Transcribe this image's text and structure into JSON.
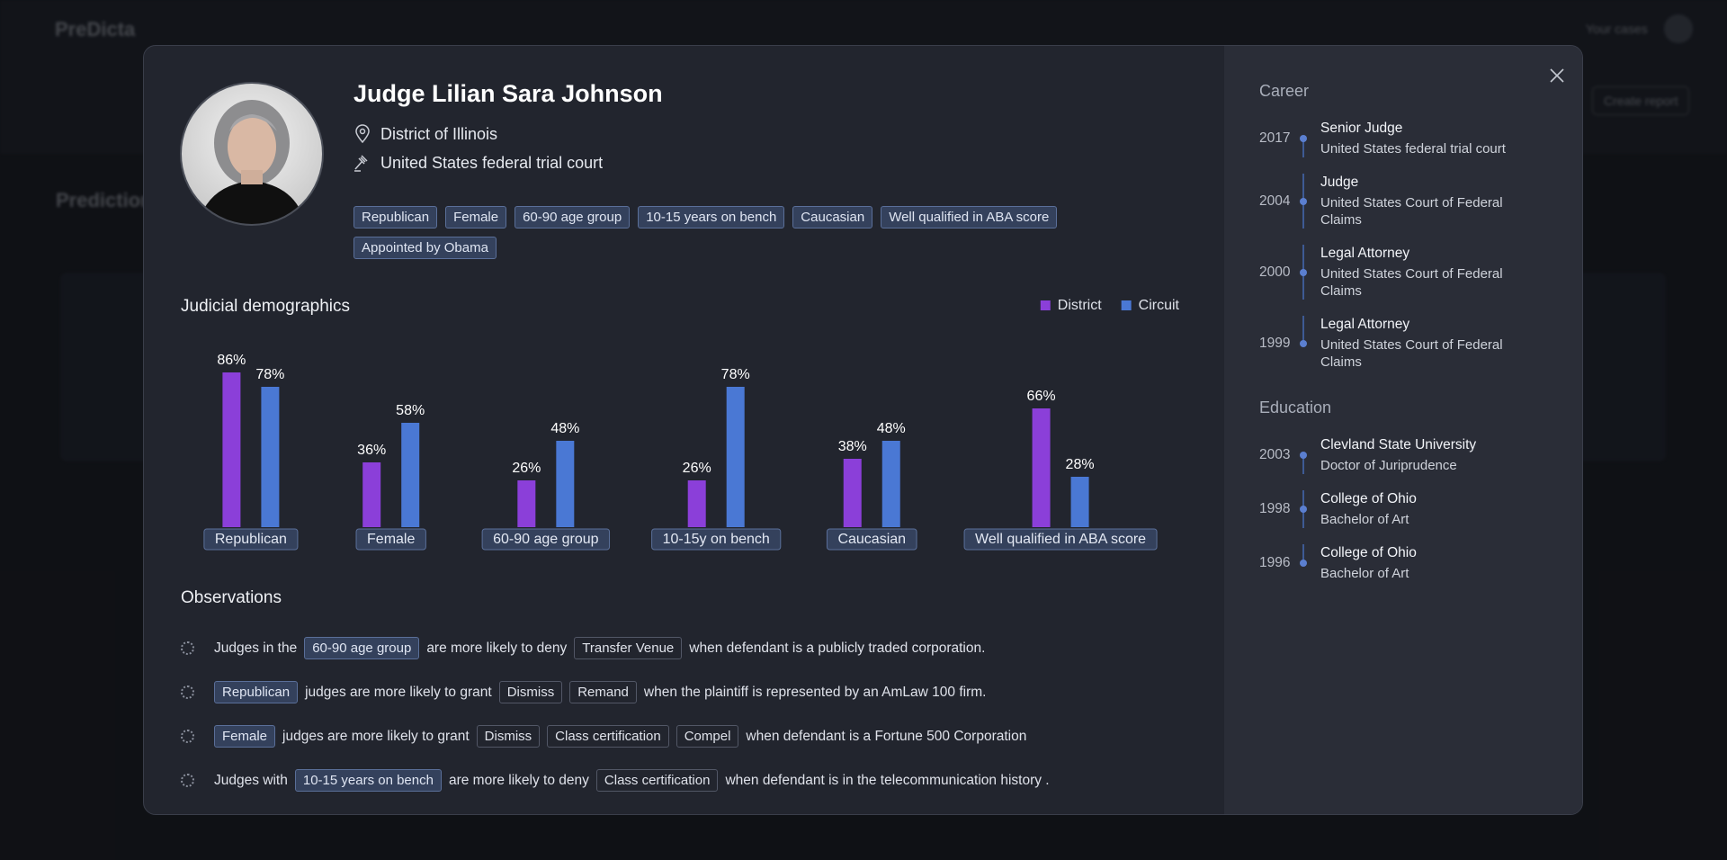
{
  "background": {
    "logo": "PreDicta",
    "nav_link": "Your cases",
    "button": "Create report",
    "section_title": "Predictions"
  },
  "profile": {
    "name": "Judge Lilian Sara Johnson",
    "district": "District of Illinois",
    "court": "United States federal trial court",
    "tags": [
      "Republican",
      "Female",
      "60-90 age group",
      "10-15 years on bench",
      "Caucasian",
      "Well qualified in ABA score",
      "Appointed by Obama"
    ]
  },
  "chart_data": {
    "type": "bar",
    "title": "Judicial demographics",
    "categories": [
      "Republican",
      "Female",
      "60-90 age group",
      "10-15y on bench",
      "Caucasian",
      "Well qualified in ABA score"
    ],
    "series": [
      {
        "name": "District",
        "color": "#8b3fd9",
        "values": [
          86,
          36,
          26,
          26,
          38,
          66
        ],
        "value_labels": [
          "86%",
          "36%",
          "26%",
          "26%",
          "38%",
          "66%"
        ]
      },
      {
        "name": "Circuit",
        "color": "#4a78d4",
        "values": [
          78,
          58,
          48,
          78,
          48,
          28
        ],
        "value_labels": [
          "78%",
          "58%",
          "48%",
          "78%",
          "48%",
          "28%"
        ]
      }
    ],
    "ylim": [
      0,
      100
    ],
    "legend": "top-right"
  },
  "observations": {
    "title": "Observations",
    "items": [
      {
        "parts": [
          {
            "text": "Judges in the"
          },
          {
            "tag": "60-90 age group"
          },
          {
            "text": "are more likely to deny"
          },
          {
            "motion": "Transfer Venue"
          },
          {
            "text": "when defendant is a publicly traded corporation."
          }
        ]
      },
      {
        "parts": [
          {
            "tag": "Republican"
          },
          {
            "text": "judges are more likely to grant"
          },
          {
            "motion": "Dismiss"
          },
          {
            "motion": "Remand"
          },
          {
            "text": "when the plaintiff is represented by an AmLaw 100 firm."
          }
        ]
      },
      {
        "parts": [
          {
            "tag": "Female"
          },
          {
            "text": "judges are more likely to grant"
          },
          {
            "motion": "Dismiss"
          },
          {
            "motion": "Class certification"
          },
          {
            "motion": "Compel"
          },
          {
            "text": "when defendant is a Fortune 500 Corporation"
          }
        ]
      },
      {
        "parts": [
          {
            "text": "Judges with"
          },
          {
            "tag": "10-15 years on bench"
          },
          {
            "text": "are more likely to deny"
          },
          {
            "motion": "Class certification"
          },
          {
            "text": "when defendant is in the telecommunication history ."
          }
        ]
      }
    ]
  },
  "career": {
    "title": "Career",
    "entries": [
      {
        "year": "2017",
        "role": "Senior Judge",
        "org": "United States federal trial court"
      },
      {
        "year": "2004",
        "role": "Judge",
        "org": "United States Court of Federal Claims"
      },
      {
        "year": "2000",
        "role": "Legal Attorney",
        "org": "United States Court of Federal Claims"
      },
      {
        "year": "1999",
        "role": "Legal Attorney",
        "org": "United States Court of Federal Claims"
      }
    ]
  },
  "education": {
    "title": "Education",
    "entries": [
      {
        "year": "2003",
        "school": "Clevland State University",
        "degree": "Doctor of Juriprudence"
      },
      {
        "year": "1998",
        "school": "College of Ohio",
        "degree": "Bachelor of Art"
      },
      {
        "year": "1996",
        "school": "College of Ohio",
        "degree": "Bachelor of Art"
      }
    ]
  }
}
